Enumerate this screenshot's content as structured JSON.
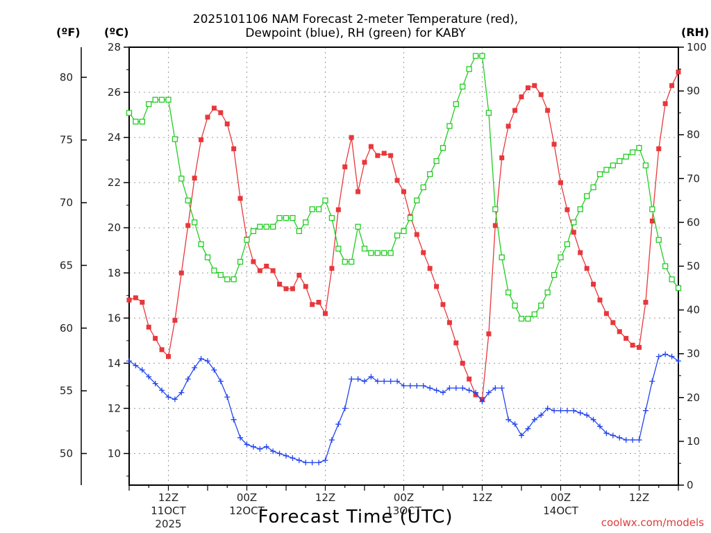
{
  "header": {
    "title_line1": "2025101106 NAM Forecast 2-meter Temperature (red),",
    "title_line2": "Dewpoint (blue), RH (green) for KABY"
  },
  "units": {
    "fahrenheit": "(ºF)",
    "celsius": "(ºC)",
    "rh": "(RH)"
  },
  "footer": {
    "xlabel": "Forecast Time (UTC)",
    "credit": "coolwx.com/models"
  },
  "colors": {
    "temperature": "#e8373b",
    "dewpoint": "#2244ee",
    "rh": "#22cc22",
    "grid": "#999999"
  },
  "chart_data": {
    "type": "line",
    "title": "2025101106 NAM Forecast 2-meter Temperature (red), Dewpoint (blue), RH (green) for KABY",
    "xlabel": "Forecast Time (UTC)",
    "x_unit": "hours from 2025-10-11 06Z",
    "x_range": [
      0,
      84
    ],
    "celsius_axis": {
      "range": [
        8.6,
        28
      ],
      "ticks": [
        10,
        12,
        14,
        16,
        18,
        20,
        22,
        24,
        26,
        28
      ]
    },
    "fahrenheit_axis": {
      "ticks": [
        50,
        55,
        60,
        65,
        70,
        75,
        80
      ]
    },
    "rh_axis": {
      "range": [
        0,
        100
      ],
      "ticks": [
        0,
        10,
        20,
        30,
        40,
        50,
        60,
        70,
        80,
        90,
        100
      ]
    },
    "x_ticks": [
      {
        "hour": 6,
        "label": "12Z",
        "date": "11OCT",
        "year": "2025"
      },
      {
        "hour": 18,
        "label": "00Z",
        "date": "12OCT",
        "year": ""
      },
      {
        "hour": 30,
        "label": "12Z",
        "date": "",
        "year": ""
      },
      {
        "hour": 42,
        "label": "00Z",
        "date": "13OCT",
        "year": ""
      },
      {
        "hour": 54,
        "label": "12Z",
        "date": "",
        "year": ""
      },
      {
        "hour": 66,
        "label": "00Z",
        "date": "14OCT",
        "year": ""
      },
      {
        "hour": 78,
        "label": "12Z",
        "date": "",
        "year": ""
      }
    ],
    "series": [
      {
        "name": "Temperature (red)",
        "axis": "celsius",
        "marker": "filled-square",
        "x": [
          0,
          1,
          2,
          3,
          4,
          5,
          6,
          7,
          8,
          9,
          10,
          11,
          12,
          13,
          14,
          15,
          16,
          17,
          18,
          19,
          20,
          21,
          22,
          23,
          24,
          25,
          26,
          27,
          28,
          29,
          30,
          31,
          32,
          33,
          34,
          35,
          36,
          37,
          38,
          39,
          40,
          41,
          42,
          43,
          44,
          45,
          46,
          47,
          48,
          49,
          50,
          51,
          52,
          53,
          54,
          55,
          56,
          57,
          58,
          59,
          60,
          61,
          62,
          63,
          64,
          65,
          66,
          67,
          68,
          69,
          70,
          71,
          72,
          73,
          74,
          75,
          76,
          77,
          78,
          79,
          80,
          81,
          82,
          83,
          84
        ],
        "values": [
          16.8,
          16.9,
          16.7,
          15.6,
          15.1,
          14.6,
          14.3,
          15.9,
          18.0,
          20.1,
          22.2,
          23.9,
          24.9,
          25.3,
          25.1,
          24.6,
          23.5,
          21.3,
          19.5,
          18.5,
          18.1,
          18.3,
          18.1,
          17.5,
          17.3,
          17.3,
          17.9,
          17.4,
          16.6,
          16.7,
          16.2,
          18.2,
          20.8,
          22.7,
          24.0,
          21.6,
          22.9,
          23.6,
          23.2,
          23.3,
          23.2,
          22.1,
          21.6,
          20.5,
          19.7,
          18.9,
          18.2,
          17.4,
          16.6,
          15.8,
          14.9,
          14.0,
          13.3,
          12.6,
          12.4,
          15.3,
          20.1,
          23.1,
          24.5,
          25.2,
          25.8,
          26.2,
          26.3,
          25.9,
          25.2,
          23.7,
          22.0,
          20.8,
          19.8,
          18.9,
          18.2,
          17.5,
          16.8,
          16.2,
          15.8,
          15.4,
          15.1,
          14.8,
          14.7,
          16.7,
          20.3,
          23.5,
          25.5,
          26.3,
          26.9
        ]
      },
      {
        "name": "Dewpoint (blue)",
        "axis": "celsius",
        "marker": "plus",
        "x": [
          0,
          1,
          2,
          3,
          4,
          5,
          6,
          7,
          8,
          9,
          10,
          11,
          12,
          13,
          14,
          15,
          16,
          17,
          18,
          19,
          20,
          21,
          22,
          23,
          24,
          25,
          26,
          27,
          28,
          29,
          30,
          31,
          32,
          33,
          34,
          35,
          36,
          37,
          38,
          39,
          40,
          41,
          42,
          43,
          44,
          45,
          46,
          47,
          48,
          49,
          50,
          51,
          52,
          53,
          54,
          55,
          56,
          57,
          58,
          59,
          60,
          61,
          62,
          63,
          64,
          65,
          66,
          67,
          68,
          69,
          70,
          71,
          72,
          73,
          74,
          75,
          76,
          77,
          78,
          79,
          80,
          81,
          82,
          83,
          84
        ],
        "values": [
          14.1,
          13.9,
          13.7,
          13.4,
          13.1,
          12.8,
          12.5,
          12.4,
          12.7,
          13.3,
          13.8,
          14.2,
          14.1,
          13.7,
          13.2,
          12.5,
          11.5,
          10.7,
          10.4,
          10.3,
          10.2,
          10.3,
          10.1,
          10.0,
          9.9,
          9.8,
          9.7,
          9.6,
          9.6,
          9.6,
          9.7,
          10.6,
          11.3,
          12.0,
          13.3,
          13.3,
          13.2,
          13.4,
          13.2,
          13.2,
          13.2,
          13.2,
          13.0,
          13.0,
          13.0,
          13.0,
          12.9,
          12.8,
          12.7,
          12.9,
          12.9,
          12.9,
          12.8,
          12.7,
          12.3,
          12.7,
          12.9,
          12.9,
          11.5,
          11.3,
          10.8,
          11.1,
          11.5,
          11.7,
          12.0,
          11.9,
          11.9,
          11.9,
          11.9,
          11.8,
          11.7,
          11.5,
          11.2,
          10.9,
          10.8,
          10.7,
          10.6,
          10.6,
          10.6,
          11.9,
          13.2,
          14.3,
          14.4,
          14.3,
          14.1
        ]
      },
      {
        "name": "RH (green)",
        "axis": "rh",
        "marker": "open-square",
        "x": [
          0,
          1,
          2,
          3,
          4,
          5,
          6,
          7,
          8,
          9,
          10,
          11,
          12,
          13,
          14,
          15,
          16,
          17,
          18,
          19,
          20,
          21,
          22,
          23,
          24,
          25,
          26,
          27,
          28,
          29,
          30,
          31,
          32,
          33,
          34,
          35,
          36,
          37,
          38,
          39,
          40,
          41,
          42,
          43,
          44,
          45,
          46,
          47,
          48,
          49,
          50,
          51,
          52,
          53,
          54,
          55,
          56,
          57,
          58,
          59,
          60,
          61,
          62,
          63,
          64,
          65,
          66,
          67,
          68,
          69,
          70,
          71,
          72,
          73,
          74,
          75,
          76,
          77,
          78,
          79,
          80,
          81,
          82,
          83,
          84
        ],
        "values": [
          85,
          83,
          83,
          87,
          88,
          88,
          88,
          79,
          70,
          65,
          60,
          55,
          52,
          49,
          48,
          47,
          47,
          51,
          56,
          58,
          59,
          59,
          59,
          61,
          61,
          61,
          58,
          60,
          63,
          63,
          65,
          61,
          54,
          51,
          51,
          59,
          54,
          53,
          53,
          53,
          53,
          57,
          58,
          61,
          65,
          68,
          71,
          74,
          77,
          82,
          87,
          91,
          95,
          98,
          98,
          85,
          63,
          52,
          44,
          41,
          38,
          38,
          39,
          41,
          44,
          48,
          52,
          55,
          60,
          63,
          66,
          68,
          71,
          72,
          73,
          74,
          75,
          76,
          77,
          73,
          63,
          56,
          50,
          47,
          45
        ]
      }
    ]
  }
}
